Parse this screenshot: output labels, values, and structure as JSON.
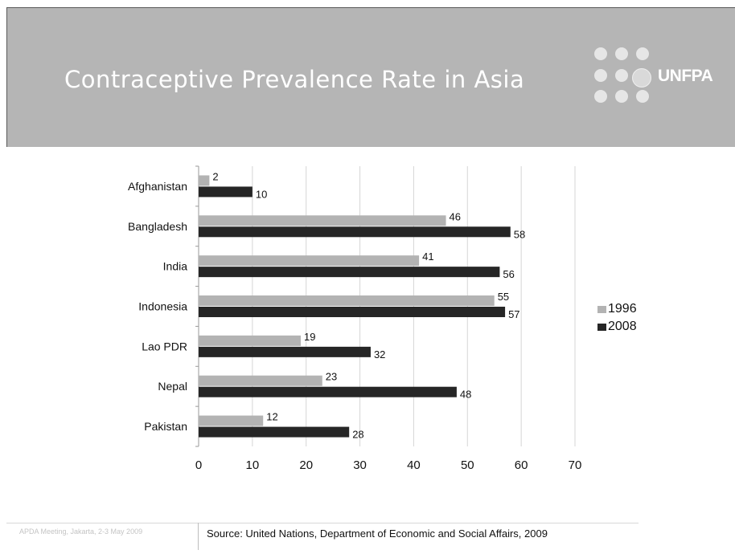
{
  "slide": {
    "title": "Contraceptive Prevalence Rate in Asia",
    "logo_text": "UNFPA",
    "footer_left": "APDA Meeting, Jakarta, 2-3 May 2009",
    "source": "Source: United Nations, Department of Economic and Social Affairs, 2009"
  },
  "colors": {
    "header_bg": "#b5b5b5",
    "series_1996": "#b3b3b3",
    "series_2008": "#262626"
  },
  "chart_data": {
    "type": "bar",
    "orientation": "horizontal",
    "title": "",
    "xlabel": "",
    "ylabel": "",
    "categories": [
      "Afghanistan",
      "Bangladesh",
      "India",
      "Indonesia",
      "Lao PDR",
      "Nepal",
      "Pakistan"
    ],
    "series": [
      {
        "name": "1996",
        "values": [
          2,
          46,
          41,
          55,
          19,
          23,
          12
        ]
      },
      {
        "name": "2008",
        "values": [
          10,
          58,
          56,
          57,
          32,
          48,
          28
        ]
      }
    ],
    "xlim": [
      0,
      70
    ],
    "xticks": [
      0,
      10,
      20,
      30,
      40,
      50,
      60,
      70
    ],
    "grid": "vertical",
    "legend_position": "right"
  }
}
